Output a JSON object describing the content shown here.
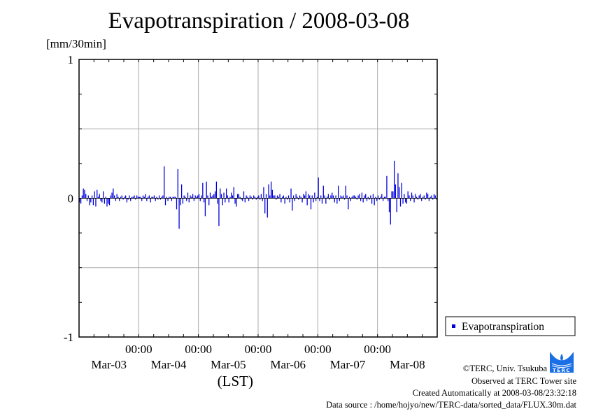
{
  "chart_data": {
    "type": "bar",
    "title": "Evapotranspiration / 2008-03-08",
    "ylabel": "[mm/30min]",
    "xlabel": "(LST)",
    "ylim": [
      -1,
      1
    ],
    "yticks": [
      {
        "value": 1,
        "label": "1"
      },
      {
        "value": 0,
        "label": "0"
      },
      {
        "value": -1,
        "label": "-1"
      }
    ],
    "xrange_days": 6,
    "x_start": "2008-03-03 00:00",
    "interval": "30min",
    "day_labels": [
      "Mar-03",
      "Mar-04",
      "Mar-05",
      "Mar-06",
      "Mar-07",
      "Mar-08"
    ],
    "midnight_label": "00:00",
    "grid": true,
    "legend": {
      "placement": "right",
      "entries": [
        "Evapotranspiration"
      ]
    },
    "series": [
      {
        "name": "Evapotranspiration",
        "color": "#0000dd",
        "values": [
          -0.03,
          -0.04,
          0.02,
          0.07,
          0.06,
          0.03,
          -0.02,
          0.02,
          -0.05,
          -0.03,
          0.02,
          -0.05,
          0.05,
          -0.06,
          0.06,
          0.01,
          0.03,
          -0.02,
          -0.03,
          0.05,
          -0.04,
          0.01,
          -0.06,
          -0.04,
          -0.05,
          0.02,
          0.04,
          0.07,
          0.02,
          -0.02,
          0.03,
          0.01,
          -0.02,
          0.01,
          0.02,
          -0.01,
          0.01,
          0.02,
          -0.03,
          -0.01,
          0.02,
          -0.02,
          0.01,
          0.01,
          0.02,
          -0.01,
          0.02,
          0.01,
          0.01,
          0.01,
          -0.02,
          0.02,
          0.01,
          0.03,
          -0.02,
          0.01,
          0.02,
          -0.03,
          0.01,
          0.01,
          0.02,
          -0.02,
          0.01,
          -0.01,
          0.02,
          -0.01,
          0.01,
          0.02,
          0.23,
          -0.05,
          0.01,
          -0.02,
          0.01,
          0.01,
          -0.02,
          0.01,
          0.01,
          0.01,
          -0.08,
          0.21,
          -0.22,
          -0.05,
          0.1,
          -0.04,
          0.02,
          0.01,
          -0.02,
          0.04,
          -0.03,
          0.02,
          0.01,
          0.03,
          -0.02,
          0.02,
          0.01,
          0.02,
          0.03,
          -0.02,
          0.02,
          0.11,
          -0.03,
          -0.13,
          0.12,
          0.02,
          -0.05,
          0.04,
          0.01,
          0.02,
          0.03,
          0.05,
          0.12,
          -0.04,
          -0.2,
          0.07,
          0.03,
          -0.05,
          0.04,
          -0.03,
          0.07,
          0.02,
          -0.03,
          0.01,
          0.04,
          0.02,
          0.08,
          -0.04,
          -0.06,
          0.03,
          0.03,
          0.01,
          -0.01,
          -0.02,
          0.05,
          -0.03,
          0.02,
          0.01,
          -0.02,
          0.02,
          0.01,
          -0.01,
          0.02,
          0.01,
          -0.01,
          0.01,
          0.02,
          -0.01,
          0.03,
          -0.02,
          0.08,
          -0.11,
          0.03,
          -0.14,
          0.1,
          0.02,
          0.12,
          0.06,
          0.02,
          0.02,
          -0.01,
          0.02,
          0.01,
          0.03,
          -0.03,
          0.01,
          0.02,
          -0.04,
          0.01,
          -0.01,
          0.02,
          -0.03,
          0.07,
          -0.09,
          0.02,
          -0.02,
          0.03,
          0.01,
          -0.01,
          0.02,
          0.01,
          -0.03,
          0.03,
          0.02,
          0.05,
          -0.05,
          0.03,
          0.02,
          -0.08,
          0.02,
          -0.03,
          0.04,
          -0.02,
          0.01,
          0.15,
          -0.02,
          0.02,
          -0.04,
          0.09,
          0.02,
          -0.04,
          0.01,
          0.03,
          -0.01,
          0.02,
          0.04,
          0.02,
          -0.03,
          0.02,
          -0.04,
          0.09,
          -0.02,
          0.02,
          0.01,
          0.02,
          -0.01,
          0.09,
          0.02,
          -0.08,
          0.01,
          -0.02,
          0.01,
          0.02,
          0.02,
          0.01,
          -0.01,
          0.02,
          0.03,
          -0.02,
          0.04,
          -0.03,
          0.02,
          0.03,
          -0.02,
          0.01,
          -0.01,
          0.02,
          -0.04,
          0.03,
          -0.05,
          0.01,
          -0.02,
          0.02,
          -0.01,
          0.01,
          0.03,
          -0.02,
          0.01,
          0.01,
          0.16,
          -0.02,
          -0.1,
          -0.19,
          0.05,
          0.05,
          0.27,
          0.1,
          -0.1,
          0.18,
          0.08,
          -0.06,
          0.11,
          -0.04,
          0.03,
          -0.03,
          -0.04,
          0.05,
          0.02,
          -0.02,
          0.04,
          0.02,
          -0.03,
          0.03,
          0.01,
          -0.01,
          0.02,
          0.03,
          -0.02,
          0.01,
          0.02,
          -0.01,
          0.04,
          0.03,
          -0.02,
          0.01,
          0.02,
          -0.01,
          0.03,
          0.02,
          -0.01
        ]
      }
    ]
  },
  "footer": {
    "copyright": "©TERC, Univ. Tsukuba",
    "site": "Observed at TERC Tower site",
    "created": "Created Automatically at 2008-03-08/23:32:18",
    "source": "Data source : /home/hojyo/new/TERC-data/sorted_data/FLUX.30m.dat",
    "logo_text": "TERC"
  }
}
